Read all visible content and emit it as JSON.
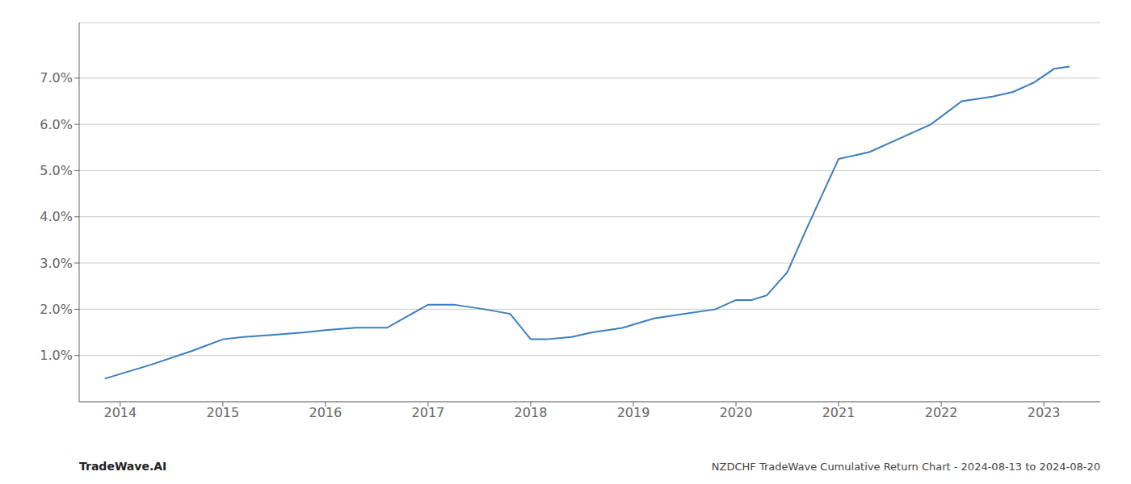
{
  "chart_data": {
    "type": "line",
    "x": [
      2013.85,
      2014.3,
      2014.7,
      2015.0,
      2015.2,
      2015.5,
      2015.8,
      2016.0,
      2016.3,
      2016.6,
      2017.0,
      2017.25,
      2017.55,
      2017.8,
      2018.0,
      2018.15,
      2018.4,
      2018.6,
      2018.9,
      2019.2,
      2019.5,
      2019.8,
      2020.0,
      2020.15,
      2020.3,
      2020.5,
      2020.7,
      2021.0,
      2021.3,
      2021.6,
      2021.9,
      2022.2,
      2022.5,
      2022.7,
      2022.9,
      2023.1,
      2023.25
    ],
    "values": [
      0.005,
      0.008,
      0.011,
      0.0135,
      0.014,
      0.0145,
      0.015,
      0.0155,
      0.016,
      0.016,
      0.021,
      0.021,
      0.02,
      0.019,
      0.0135,
      0.0135,
      0.014,
      0.015,
      0.016,
      0.018,
      0.019,
      0.02,
      0.022,
      0.022,
      0.023,
      0.028,
      0.038,
      0.0525,
      0.054,
      0.057,
      0.06,
      0.065,
      0.066,
      0.067,
      0.069,
      0.072,
      0.0725
    ],
    "color": "#3a7ebf",
    "xlim": [
      2013.6,
      2023.55
    ],
    "ylim": [
      0.0,
      0.082
    ],
    "yticks": [
      {
        "value": 0.01,
        "label": "1.0%"
      },
      {
        "value": 0.02,
        "label": "2.0%"
      },
      {
        "value": 0.03,
        "label": "3.0%"
      },
      {
        "value": 0.04,
        "label": "4.0%"
      },
      {
        "value": 0.05,
        "label": "5.0%"
      },
      {
        "value": 0.06,
        "label": "6.0%"
      },
      {
        "value": 0.07,
        "label": "7.0%"
      }
    ],
    "xticks": [
      2014,
      2015,
      2016,
      2017,
      2018,
      2019,
      2020,
      2021,
      2022,
      2023
    ],
    "grid": true,
    "annotations": [
      "TradeWave.AI",
      "NZDCHF TradeWave Cumulative Return Chart - 2024-08-13 to 2024-08-20"
    ]
  }
}
